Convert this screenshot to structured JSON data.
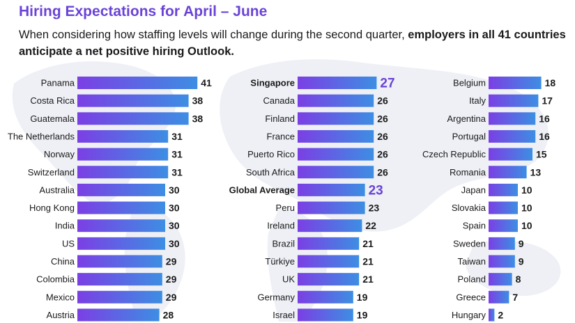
{
  "header": {
    "title": "Hiring Expectations for April – June",
    "subtitle_normal": "When considering how staffing levels will change during the second quarter, ",
    "subtitle_bold": "employers in all 41 countries anticipate a net positive hiring Outlook."
  },
  "colors": {
    "title": "#6a43d6",
    "bar_start": "#7b3fe4",
    "bar_end": "#3d8ee3",
    "value_text": "#1a1a1a",
    "highlight_value": "#6a43d6",
    "label_text": "#1a1a1a",
    "map": "#eef0f6"
  },
  "chart_data": {
    "type": "bar",
    "orientation": "horizontal",
    "title": "Hiring Expectations for April – June",
    "xlabel": "",
    "ylabel": "",
    "xlim": [
      0,
      41
    ],
    "grid": false,
    "panels": [
      {
        "categories": [
          "Panama",
          "Costa Rica",
          "Guatemala",
          "The Netherlands",
          "Norway",
          "Switzerland",
          "Australia",
          "Hong Kong",
          "India",
          "US",
          "China",
          "Colombia",
          "Mexico",
          "Austria"
        ],
        "values": [
          41,
          38,
          38,
          31,
          31,
          31,
          30,
          30,
          30,
          30,
          29,
          29,
          29,
          28
        ]
      },
      {
        "categories": [
          "Singapore",
          "Canada",
          "Finland",
          "France",
          "Puerto Rico",
          "South Africa",
          "Global Average",
          "Peru",
          "Ireland",
          "Brazil",
          "Türkiye",
          "UK",
          "Germany",
          "Israel"
        ],
        "values": [
          27,
          26,
          26,
          26,
          26,
          26,
          23,
          23,
          22,
          21,
          21,
          21,
          19,
          19
        ],
        "highlighted": [
          "Singapore",
          "Global Average"
        ]
      },
      {
        "categories": [
          "Belgium",
          "Italy",
          "Argentina",
          "Portugal",
          "Czech Republic",
          "Romania",
          "Japan",
          "Slovakia",
          "Spain",
          "Sweden",
          "Taiwan",
          "Poland",
          "Greece",
          "Hungary"
        ],
        "values": [
          18,
          17,
          16,
          16,
          15,
          13,
          10,
          10,
          10,
          9,
          9,
          8,
          7,
          2
        ]
      }
    ]
  }
}
